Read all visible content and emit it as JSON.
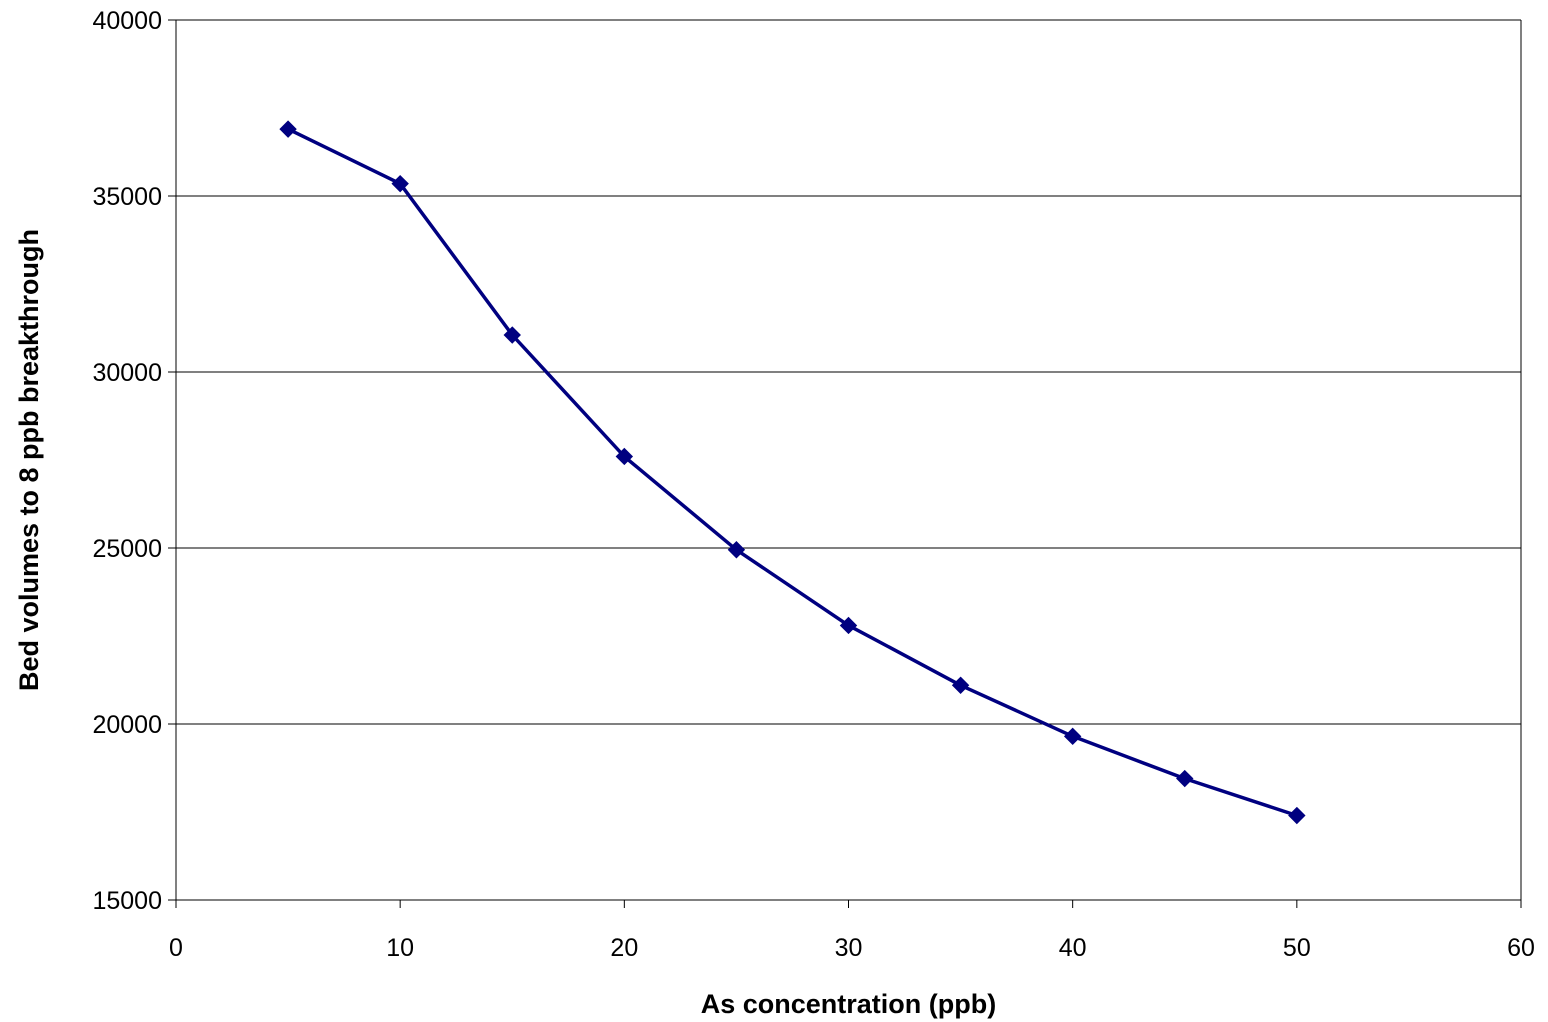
{
  "chart_data": {
    "type": "scatter",
    "title": "",
    "xlabel": "As concentration (ppb)",
    "ylabel": "Bed volumes to 8 ppb breakthrough",
    "xlim": [
      0,
      60
    ],
    "ylim": [
      15000,
      40000
    ],
    "x_ticks": [
      0,
      10,
      20,
      30,
      40,
      50,
      60
    ],
    "y_ticks": [
      15000,
      20000,
      25000,
      30000,
      35000,
      40000
    ],
    "grid": "horizontal major gridlines",
    "legend": "none",
    "colors": {
      "series": "#000080",
      "grid": "#000000",
      "axis": "#000000"
    },
    "marker": "diamond",
    "series": [
      {
        "x": [
          5,
          10,
          15,
          20,
          25,
          30,
          35,
          40,
          45,
          50
        ],
        "y": [
          36900,
          35350,
          31050,
          27600,
          24950,
          22800,
          21100,
          19650,
          18450,
          17400
        ]
      }
    ]
  }
}
